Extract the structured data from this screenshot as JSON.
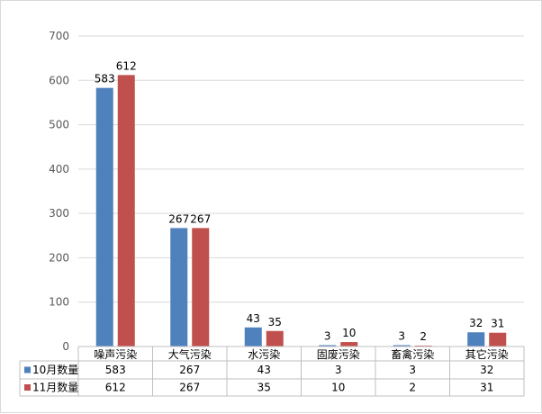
{
  "chart_data": {
    "type": "bar",
    "title": "",
    "xlabel": "",
    "ylabel": "",
    "categories": [
      "噪声污染",
      "大气污染",
      "水污染",
      "固废污染",
      "畜禽污染",
      "其它污染"
    ],
    "series": [
      {
        "name": "10月数量",
        "values": [
          583,
          267,
          43,
          3,
          3,
          32
        ],
        "color": "#4f81bd"
      },
      {
        "name": "11月数量",
        "values": [
          612,
          267,
          35,
          10,
          2,
          31
        ],
        "color": "#c0504d"
      }
    ],
    "ylim": [
      0,
      700
    ],
    "yticks": [
      0,
      100,
      200,
      300,
      400,
      500,
      600,
      700
    ],
    "grid": true,
    "legend": "data-table-left",
    "data_table": true
  }
}
